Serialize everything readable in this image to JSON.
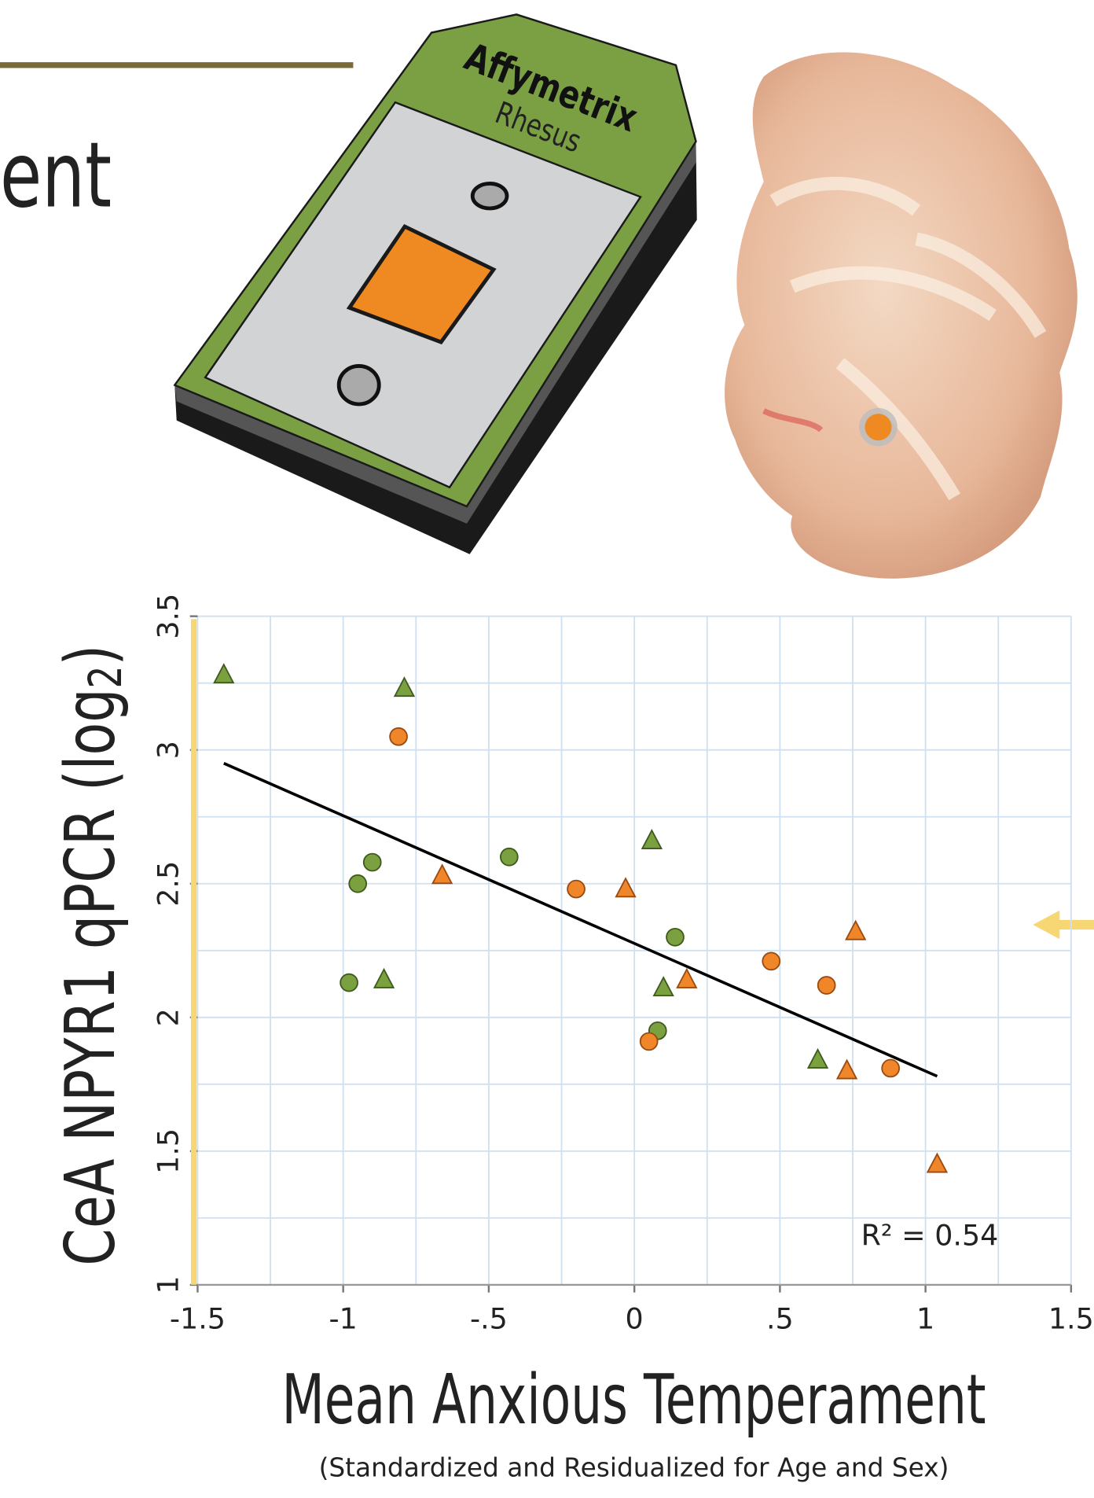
{
  "header": {
    "title_fragment": "ent"
  },
  "chip": {
    "brand": "Affymetrix",
    "species": "Rhesus"
  },
  "chart_data": {
    "type": "scatter",
    "ylabel": {
      "text": "CeA NPYR1 qPCR (log",
      "sub": "2",
      "close": ")"
    },
    "xlabel": "Mean Anxious Temperament",
    "subtitle": "(Standardized and Residualized for Age and Sex)",
    "annotation": "R² = 0.54",
    "xlim": [
      -1.5,
      1.5
    ],
    "ylim": [
      1,
      3.5
    ],
    "xticks": [
      -1.5,
      -1,
      {
        "value": -0.5,
        "label": "-.5"
      },
      0,
      {
        "value": 0.5,
        "label": ".5"
      },
      1,
      1.5
    ],
    "yticks": [
      1,
      1.5,
      2,
      2.5,
      3,
      3.5
    ],
    "xminor": [
      -1.25,
      -0.75,
      -0.25,
      0.25,
      0.75,
      1.25
    ],
    "yminor": [
      1.25,
      1.75,
      2.25,
      2.75,
      3.25
    ],
    "grid": true,
    "series": [
      {
        "color": "#7aa040",
        "marker": "triangle",
        "x": [
          -1.41,
          -0.79,
          0.06,
          -0.86,
          0.1,
          0.63
        ],
        "y": [
          3.28,
          3.23,
          2.66,
          2.14,
          2.11,
          1.84
        ]
      },
      {
        "color": "#7aa040",
        "marker": "circle",
        "x": [
          -0.9,
          -0.95,
          -0.43,
          -0.98,
          0.14,
          0.08
        ],
        "y": [
          2.58,
          2.5,
          2.6,
          2.13,
          2.3,
          1.95
        ]
      },
      {
        "color": "#f0862a",
        "marker": "circle",
        "x": [
          -0.81,
          -0.2,
          0.47,
          0.66,
          0.05,
          0.88
        ],
        "y": [
          3.05,
          2.48,
          2.21,
          2.12,
          1.91,
          1.81
        ]
      },
      {
        "color": "#f0862a",
        "marker": "triangle",
        "x": [
          -0.66,
          -0.03,
          0.18,
          0.76,
          0.73,
          1.04
        ],
        "y": [
          2.53,
          2.48,
          2.14,
          2.32,
          1.8,
          1.45
        ]
      }
    ],
    "trendline": {
      "x": [
        -1.41,
        1.04
      ],
      "y": [
        2.95,
        1.78
      ]
    }
  }
}
